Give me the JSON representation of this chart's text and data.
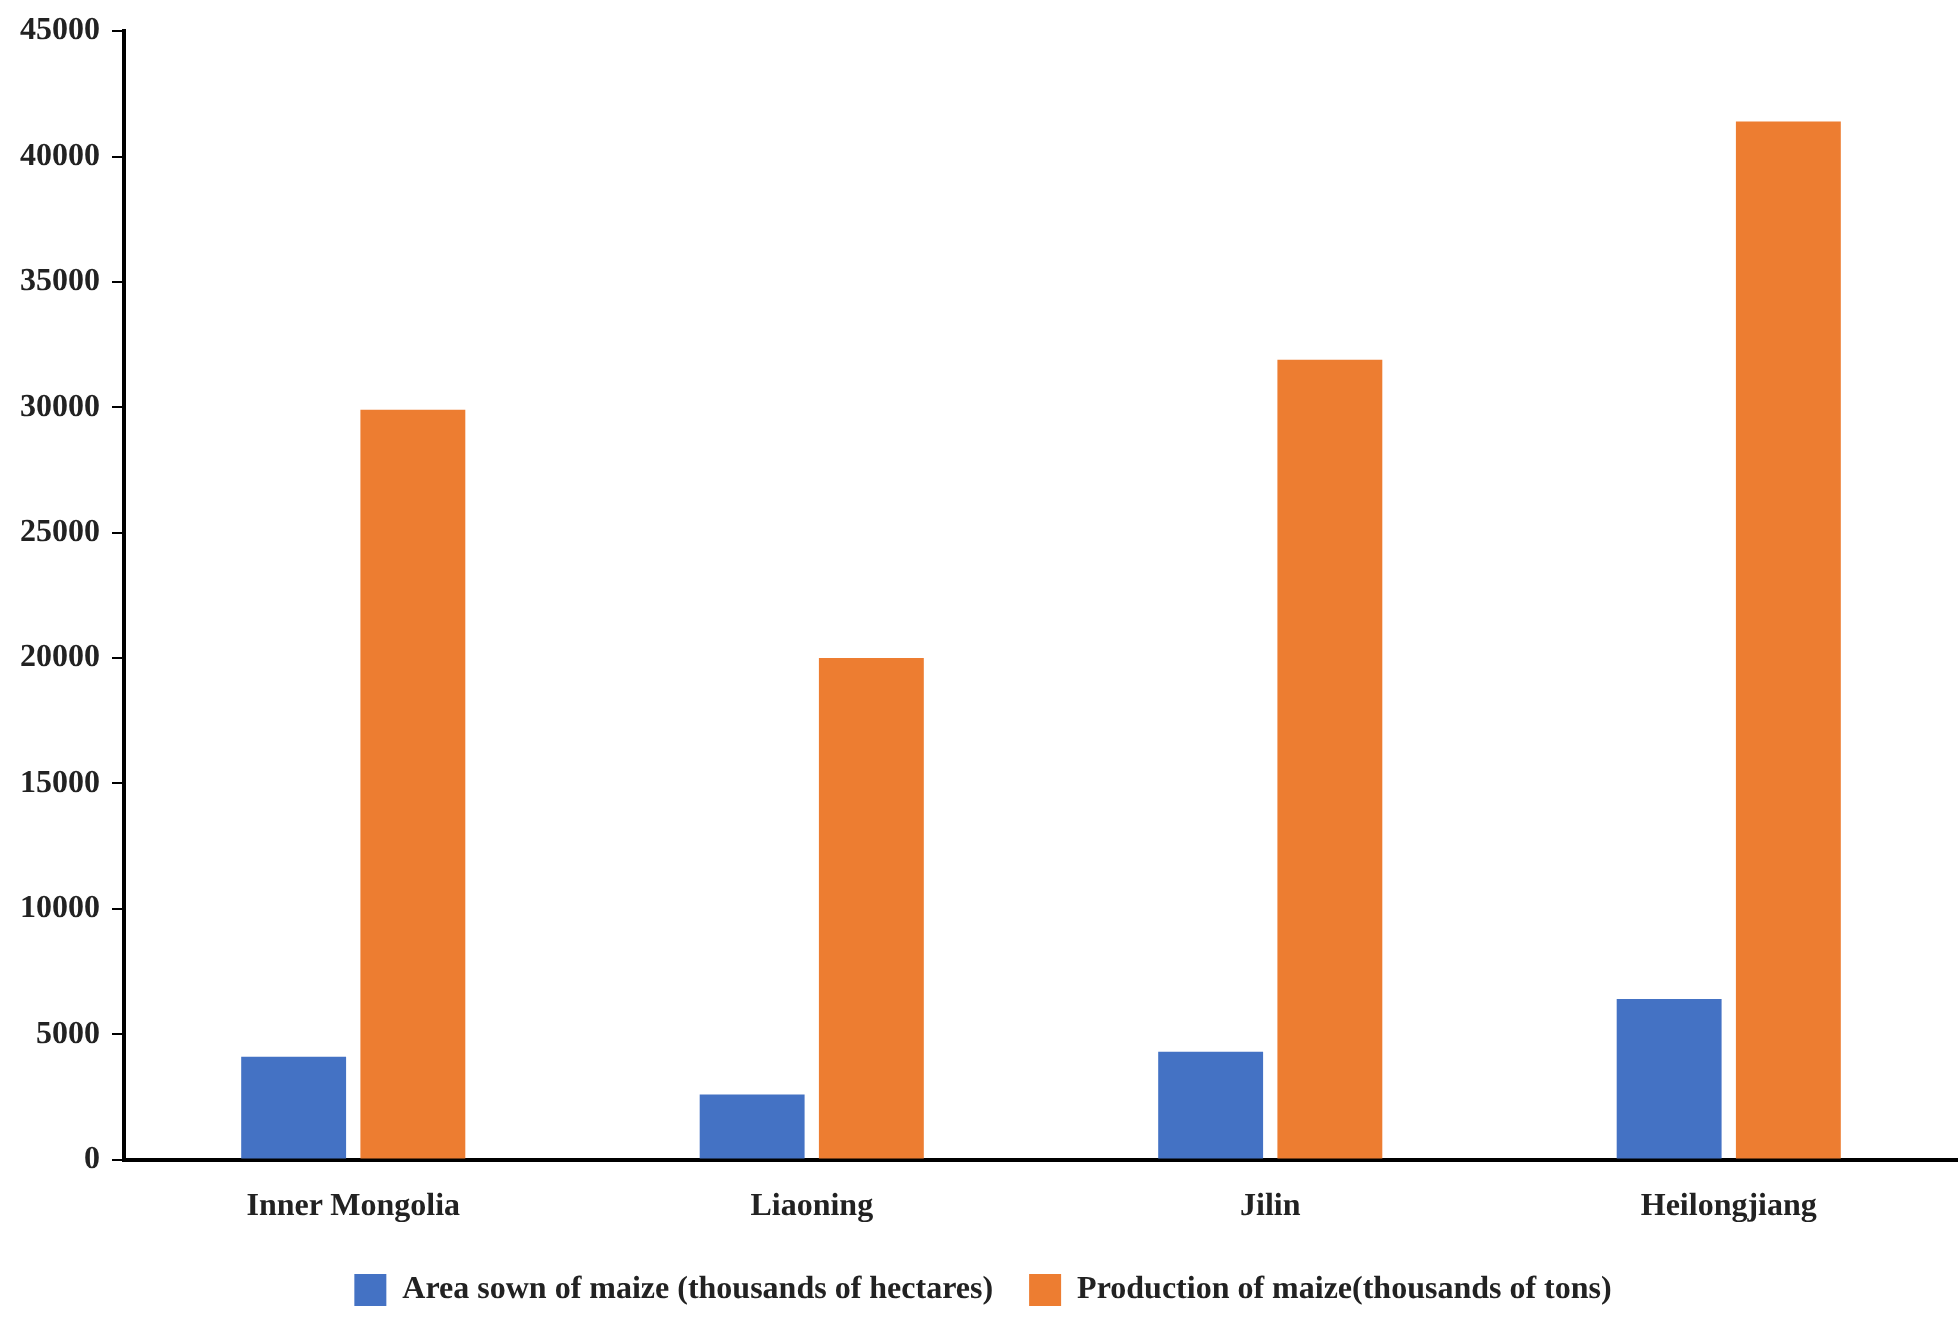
{
  "chart_data": {
    "type": "bar",
    "categories": [
      "Inner Mongolia",
      "Liaoning",
      "Jilin",
      "Heilongjiang"
    ],
    "series": [
      {
        "name": "Area sown of maize (thousands of hectares)",
        "color": "#4472c4",
        "values": [
          4100,
          2600,
          4300,
          6400
        ]
      },
      {
        "name": "Production of maize(thousands of tons)",
        "color": "#ed7d31",
        "values": [
          29900,
          20000,
          31900,
          41400
        ]
      }
    ],
    "ylim": [
      0,
      45000
    ],
    "yticks": [
      0,
      5000,
      10000,
      15000,
      20000,
      25000,
      30000,
      35000,
      40000,
      45000
    ],
    "grid": false,
    "legend": "bottom"
  }
}
